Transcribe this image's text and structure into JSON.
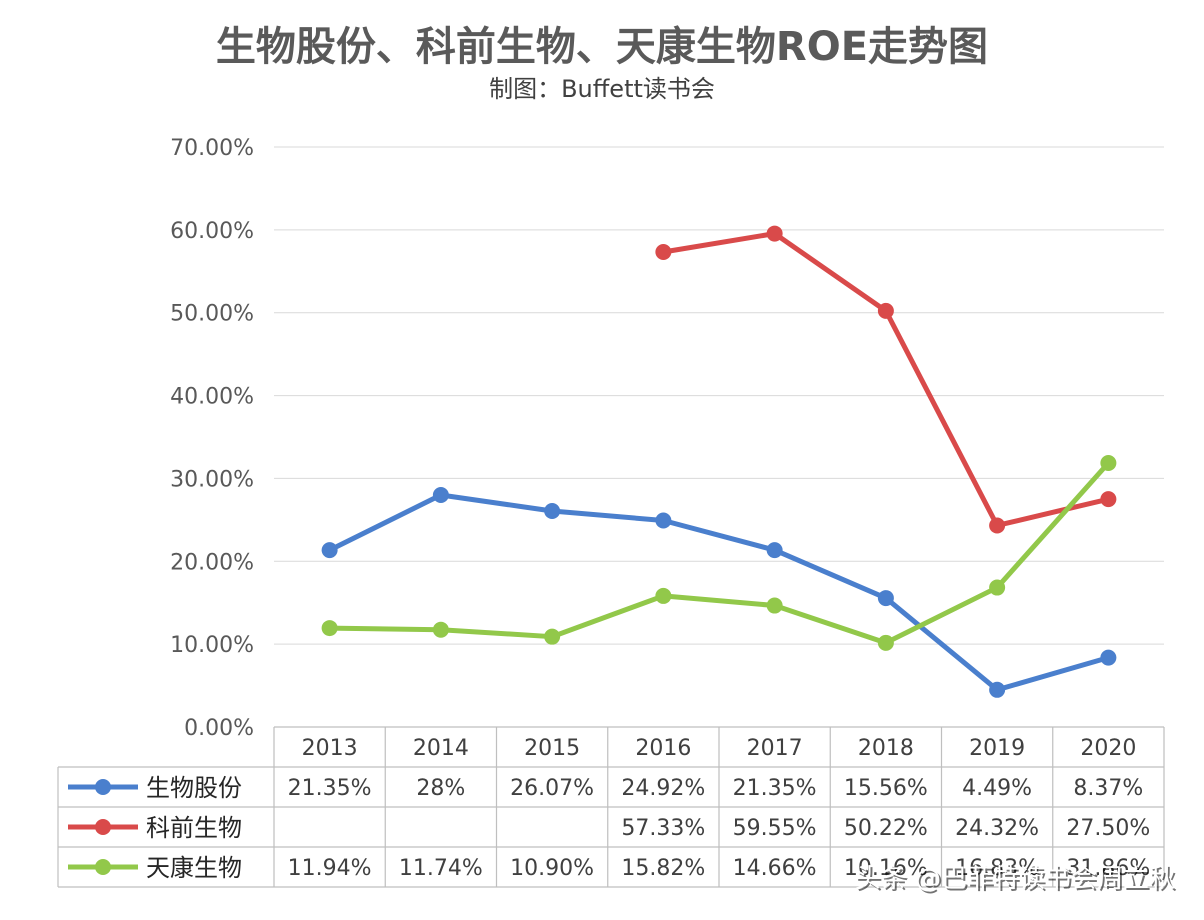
{
  "chart_data": {
    "type": "line",
    "title": "生物股份、科前生物、天康生物ROE走势图",
    "subtitle": "制图：Buffett读书会",
    "categories": [
      "2013",
      "2014",
      "2015",
      "2016",
      "2017",
      "2018",
      "2019",
      "2020"
    ],
    "ylim": [
      0,
      70
    ],
    "yticks": [
      "0.00%",
      "10.00%",
      "20.00%",
      "30.00%",
      "40.00%",
      "50.00%",
      "60.00%",
      "70.00%"
    ],
    "grid": true,
    "legend": "data-table-below",
    "series": [
      {
        "name": "生物股份",
        "color": "#4a7fcd",
        "values": [
          21.35,
          28,
          26.07,
          24.92,
          21.35,
          15.56,
          4.49,
          8.37
        ],
        "labels": [
          "21.35%",
          "28%",
          "26.07%",
          "24.92%",
          "21.35%",
          "15.56%",
          "4.49%",
          "8.37%"
        ]
      },
      {
        "name": "科前生物",
        "color": "#d94a4a",
        "values": [
          null,
          null,
          null,
          57.33,
          59.55,
          50.22,
          24.32,
          27.5
        ],
        "labels": [
          "",
          "",
          "",
          "57.33%",
          "59.55%",
          "50.22%",
          "24.32%",
          "27.50%"
        ]
      },
      {
        "name": "天康生物",
        "color": "#92c84a",
        "values": [
          11.94,
          11.74,
          10.9,
          15.82,
          14.66,
          10.16,
          16.83,
          31.86
        ],
        "labels": [
          "11.94%",
          "11.74%",
          "10.90%",
          "15.82%",
          "14.66%",
          "10.16%",
          "16.83%",
          "31.86%"
        ]
      }
    ]
  },
  "watermark": "头条 @巴菲特读书会周立秋"
}
